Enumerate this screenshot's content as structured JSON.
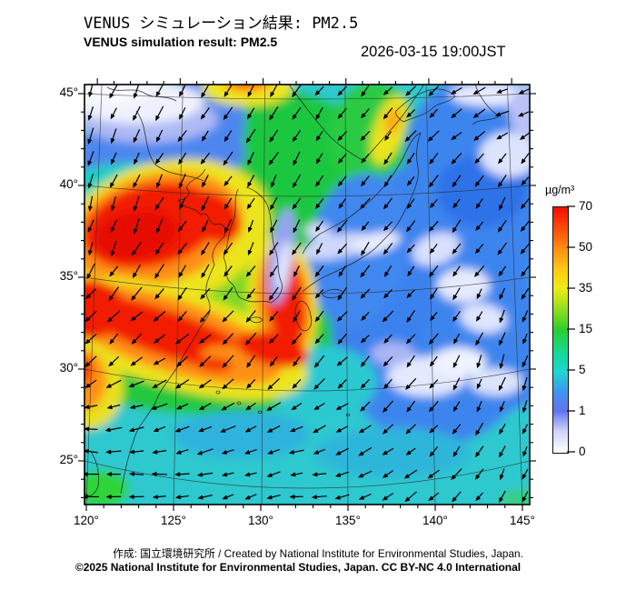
{
  "header": {
    "title_jp": "VENUS シミュレーション結果: PM2.5",
    "title_en": "VENUS simulation result: PM2.5",
    "datetime": "2026-03-15 19:00JST"
  },
  "map_axes": {
    "lat_labels": [
      "45°",
      "40°",
      "35°",
      "30°",
      "25°"
    ],
    "lon_labels": [
      "120°",
      "125°",
      "130°",
      "135°",
      "140°",
      "145°"
    ]
  },
  "colorbar": {
    "unit": "µg/m³",
    "tick_labels_top_to_bottom": [
      "70",
      "50",
      "35",
      "15",
      "5",
      "1",
      "0"
    ],
    "gradient_stops": [
      [
        "0%",
        "#ffffff"
      ],
      [
        "9%",
        "#ccd2f9"
      ],
      [
        "17%",
        "#6173ee"
      ],
      [
        "25%",
        "#3e97ef"
      ],
      [
        "33%",
        "#1fd6d0"
      ],
      [
        "41%",
        "#17d795"
      ],
      [
        "50%",
        "#27d02f"
      ],
      [
        "58%",
        "#8edc1e"
      ],
      [
        "67%",
        "#efec15"
      ],
      [
        "75%",
        "#fdc615"
      ],
      [
        "83%",
        "#ff8e12"
      ],
      [
        "92%",
        "#fa4708"
      ],
      [
        "100%",
        "#ef1000"
      ]
    ]
  },
  "footer": {
    "credit": "作成: 国立環境研究所 / Created by National Institute for Environmental Studies, Japan.",
    "license": "©2025 National Institute for Environmental Studies, Japan. CC BY-NC 4.0 International"
  }
}
